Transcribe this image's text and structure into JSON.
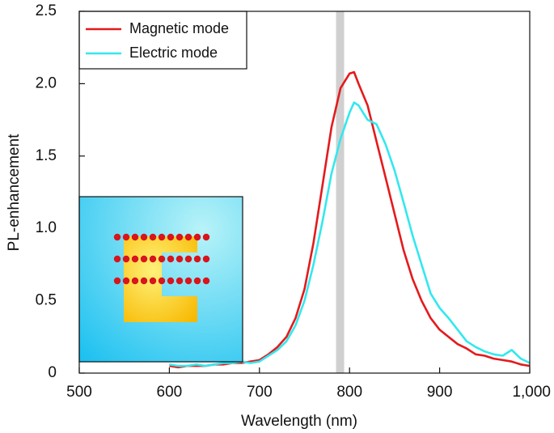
{
  "chart_data": {
    "type": "line",
    "xlabel": "Wavelength (nm)",
    "ylabel": "PL-enhancement",
    "x": [
      600,
      610,
      620,
      630,
      640,
      650,
      660,
      670,
      680,
      690,
      700,
      710,
      720,
      730,
      740,
      750,
      760,
      770,
      780,
      790,
      800,
      805,
      810,
      820,
      830,
      840,
      850,
      860,
      870,
      880,
      890,
      900,
      910,
      920,
      930,
      940,
      950,
      960,
      970,
      980,
      990,
      1000
    ],
    "series": [
      {
        "name": "Magnetic mode",
        "color": "#e41a1c",
        "values": [
          0.05,
          0.04,
          0.05,
          0.05,
          0.05,
          0.06,
          0.06,
          0.07,
          0.07,
          0.08,
          0.09,
          0.13,
          0.18,
          0.25,
          0.38,
          0.58,
          0.9,
          1.3,
          1.7,
          1.97,
          2.07,
          2.08,
          2.0,
          1.85,
          1.6,
          1.35,
          1.1,
          0.85,
          0.65,
          0.5,
          0.38,
          0.3,
          0.25,
          0.2,
          0.17,
          0.13,
          0.12,
          0.1,
          0.09,
          0.08,
          0.06,
          0.05
        ]
      },
      {
        "name": "Electric mode",
        "color": "#33e8ee",
        "values": [
          0.06,
          0.05,
          0.05,
          0.06,
          0.05,
          0.06,
          0.07,
          0.07,
          0.08,
          0.07,
          0.08,
          0.12,
          0.16,
          0.22,
          0.33,
          0.5,
          0.75,
          1.05,
          1.38,
          1.62,
          1.8,
          1.87,
          1.85,
          1.75,
          1.72,
          1.58,
          1.4,
          1.18,
          0.95,
          0.75,
          0.55,
          0.45,
          0.38,
          0.3,
          0.22,
          0.18,
          0.15,
          0.13,
          0.12,
          0.16,
          0.1,
          0.07
        ]
      }
    ],
    "shaded_band": [
      785,
      794
    ],
    "xlim": [
      500,
      1000
    ],
    "ylim": [
      0,
      2.5
    ],
    "xticks": [
      500,
      600,
      700,
      800,
      900,
      {
        "value": 1000,
        "label": "1,000"
      }
    ],
    "yticks": [
      0,
      0.5,
      {
        "value": 1,
        "label": "1.0"
      },
      1.5,
      {
        "value": 2,
        "label": "2.0"
      },
      2.5
    ],
    "legend": "top-left",
    "grid": false
  }
}
